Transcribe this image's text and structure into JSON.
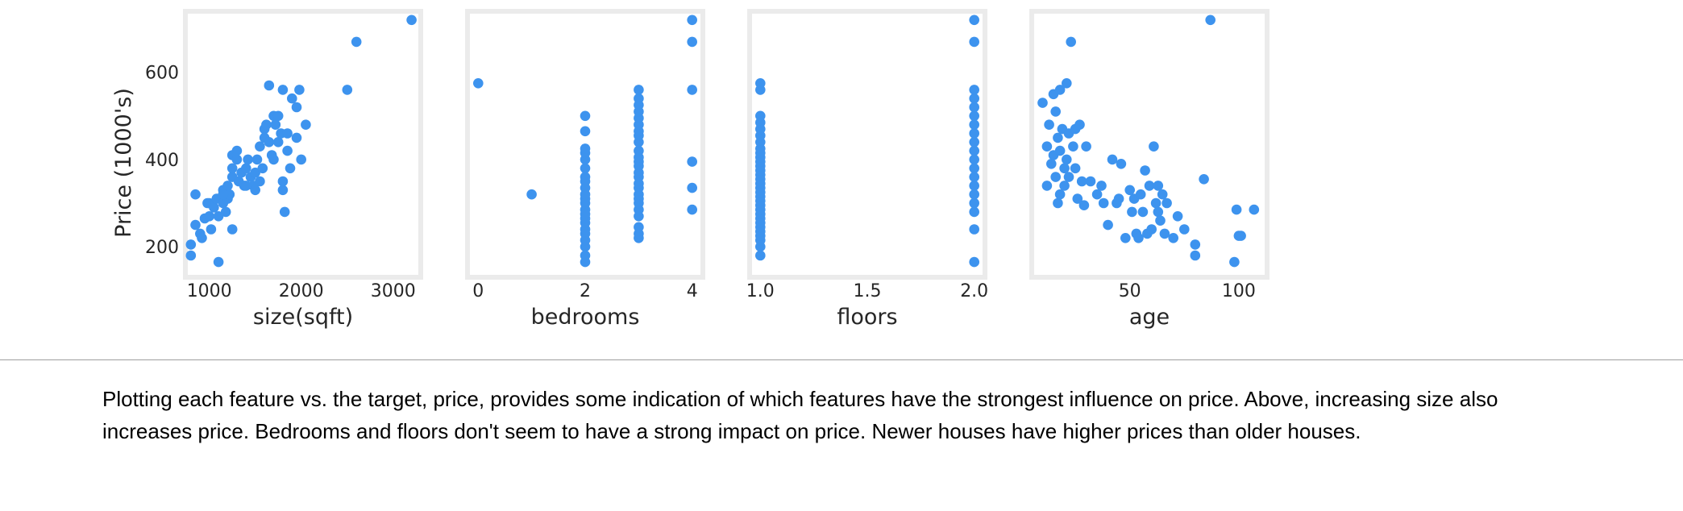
{
  "figure": {
    "ylabel": "Price (1000's)",
    "marker_color": "#3d93ee",
    "frame_color": "#ebebeb"
  },
  "chart_data": [
    {
      "type": "scatter",
      "xlabel": "size(sqft)",
      "ylabel": "Price (1000's)",
      "xlim": [
        740,
        3300
      ],
      "ylim": [
        130,
        740
      ],
      "xticks": [
        1000,
        2000,
        3000
      ],
      "yticks": [
        200,
        400,
        600
      ],
      "grid": false,
      "points": [
        [
          800,
          205
        ],
        [
          800,
          180
        ],
        [
          850,
          250
        ],
        [
          850,
          320
        ],
        [
          900,
          230
        ],
        [
          920,
          220
        ],
        [
          950,
          265
        ],
        [
          980,
          300
        ],
        [
          1000,
          270
        ],
        [
          1000,
          300
        ],
        [
          1020,
          240
        ],
        [
          1050,
          290
        ],
        [
          1080,
          310
        ],
        [
          1100,
          270
        ],
        [
          1100,
          165
        ],
        [
          1150,
          300
        ],
        [
          1150,
          330
        ],
        [
          1180,
          280
        ],
        [
          1200,
          310
        ],
        [
          1200,
          340
        ],
        [
          1220,
          320
        ],
        [
          1250,
          240
        ],
        [
          1250,
          360
        ],
        [
          1250,
          380
        ],
        [
          1250,
          410
        ],
        [
          1300,
          400
        ],
        [
          1300,
          420
        ],
        [
          1320,
          350
        ],
        [
          1350,
          370
        ],
        [
          1380,
          340
        ],
        [
          1400,
          380
        ],
        [
          1420,
          400
        ],
        [
          1450,
          360
        ],
        [
          1480,
          340
        ],
        [
          1500,
          330
        ],
        [
          1500,
          370
        ],
        [
          1520,
          400
        ],
        [
          1550,
          430
        ],
        [
          1550,
          350
        ],
        [
          1580,
          380
        ],
        [
          1600,
          470
        ],
        [
          1600,
          450
        ],
        [
          1620,
          480
        ],
        [
          1650,
          440
        ],
        [
          1680,
          410
        ],
        [
          1700,
          400
        ],
        [
          1700,
          500
        ],
        [
          1720,
          480
        ],
        [
          1750,
          440
        ],
        [
          1780,
          460
        ],
        [
          1800,
          350
        ],
        [
          1800,
          330
        ],
        [
          1820,
          280
        ],
        [
          1850,
          420
        ],
        [
          1850,
          460
        ],
        [
          1880,
          380
        ],
        [
          1900,
          540
        ],
        [
          1950,
          520
        ],
        [
          1950,
          450
        ],
        [
          1980,
          560
        ],
        [
          2000,
          400
        ],
        [
          2050,
          480
        ],
        [
          1650,
          570
        ],
        [
          1800,
          560
        ],
        [
          2500,
          560
        ],
        [
          2600,
          670
        ],
        [
          3200,
          720
        ],
        [
          1750,
          500
        ],
        [
          1400,
          340
        ],
        [
          1150,
          320
        ]
      ]
    },
    {
      "type": "scatter",
      "xlabel": "bedrooms",
      "xlim": [
        -0.2,
        4.2
      ],
      "ylim": [
        130,
        740
      ],
      "xticks": [
        0,
        2,
        4
      ],
      "grid": false,
      "points": [
        [
          0,
          575
        ],
        [
          1,
          320
        ],
        [
          2,
          165
        ],
        [
          2,
          180
        ],
        [
          2,
          200
        ],
        [
          2,
          215
        ],
        [
          2,
          230
        ],
        [
          2,
          240
        ],
        [
          2,
          255
        ],
        [
          2,
          265
        ],
        [
          2,
          275
        ],
        [
          2,
          285
        ],
        [
          2,
          300
        ],
        [
          2,
          310
        ],
        [
          2,
          320
        ],
        [
          2,
          335
        ],
        [
          2,
          350
        ],
        [
          2,
          360
        ],
        [
          2,
          380
        ],
        [
          2,
          400
        ],
        [
          2,
          415
        ],
        [
          2,
          425
        ],
        [
          2,
          465
        ],
        [
          2,
          500
        ],
        [
          3,
          220
        ],
        [
          3,
          230
        ],
        [
          3,
          245
        ],
        [
          3,
          270
        ],
        [
          3,
          285
        ],
        [
          3,
          300
        ],
        [
          3,
          310
        ],
        [
          3,
          320
        ],
        [
          3,
          335
        ],
        [
          3,
          345
        ],
        [
          3,
          360
        ],
        [
          3,
          370
        ],
        [
          3,
          385
        ],
        [
          3,
          395
        ],
        [
          3,
          405
        ],
        [
          3,
          420
        ],
        [
          3,
          440
        ],
        [
          3,
          455
        ],
        [
          3,
          465
        ],
        [
          3,
          480
        ],
        [
          3,
          495
        ],
        [
          3,
          510
        ],
        [
          3,
          525
        ],
        [
          3,
          540
        ],
        [
          3,
          560
        ],
        [
          4,
          285
        ],
        [
          4,
          335
        ],
        [
          4,
          395
        ],
        [
          4,
          560
        ],
        [
          4,
          670
        ],
        [
          4,
          720
        ]
      ]
    },
    {
      "type": "scatter",
      "xlabel": "floors",
      "xlim": [
        0.95,
        2.05
      ],
      "ylim": [
        130,
        740
      ],
      "xticks": [
        1.0,
        1.5,
        2.0
      ],
      "grid": false,
      "points": [
        [
          1,
          180
        ],
        [
          1,
          200
        ],
        [
          1,
          215
        ],
        [
          1,
          225
        ],
        [
          1,
          235
        ],
        [
          1,
          245
        ],
        [
          1,
          255
        ],
        [
          1,
          265
        ],
        [
          1,
          275
        ],
        [
          1,
          285
        ],
        [
          1,
          295
        ],
        [
          1,
          305
        ],
        [
          1,
          315
        ],
        [
          1,
          325
        ],
        [
          1,
          335
        ],
        [
          1,
          345
        ],
        [
          1,
          355
        ],
        [
          1,
          365
        ],
        [
          1,
          375
        ],
        [
          1,
          385
        ],
        [
          1,
          395
        ],
        [
          1,
          405
        ],
        [
          1,
          415
        ],
        [
          1,
          425
        ],
        [
          1,
          440
        ],
        [
          1,
          455
        ],
        [
          1,
          470
        ],
        [
          1,
          485
        ],
        [
          1,
          500
        ],
        [
          1,
          560
        ],
        [
          1,
          575
        ],
        [
          2,
          165
        ],
        [
          2,
          240
        ],
        [
          2,
          280
        ],
        [
          2,
          300
        ],
        [
          2,
          320
        ],
        [
          2,
          340
        ],
        [
          2,
          360
        ],
        [
          2,
          380
        ],
        [
          2,
          400
        ],
        [
          2,
          420
        ],
        [
          2,
          440
        ],
        [
          2,
          460
        ],
        [
          2,
          480
        ],
        [
          2,
          500
        ],
        [
          2,
          520
        ],
        [
          2,
          540
        ],
        [
          2,
          560
        ],
        [
          2,
          670
        ],
        [
          2,
          720
        ]
      ]
    },
    {
      "type": "scatter",
      "xlabel": "age",
      "xlim": [
        5,
        113
      ],
      "ylim": [
        130,
        740
      ],
      "xticks": [
        50,
        100
      ],
      "grid": false,
      "points": [
        [
          10,
          530
        ],
        [
          12,
          340
        ],
        [
          12,
          430
        ],
        [
          13,
          480
        ],
        [
          14,
          390
        ],
        [
          15,
          550
        ],
        [
          15,
          410
        ],
        [
          16,
          510
        ],
        [
          16,
          360
        ],
        [
          17,
          450
        ],
        [
          17,
          300
        ],
        [
          18,
          560
        ],
        [
          18,
          420
        ],
        [
          18,
          320
        ],
        [
          19,
          470
        ],
        [
          20,
          380
        ],
        [
          20,
          340
        ],
        [
          21,
          575
        ],
        [
          21,
          400
        ],
        [
          22,
          460
        ],
        [
          22,
          360
        ],
        [
          23,
          670
        ],
        [
          24,
          430
        ],
        [
          25,
          470
        ],
        [
          25,
          380
        ],
        [
          26,
          310
        ],
        [
          27,
          480
        ],
        [
          28,
          350
        ],
        [
          29,
          295
        ],
        [
          30,
          430
        ],
        [
          32,
          350
        ],
        [
          35,
          320
        ],
        [
          37,
          340
        ],
        [
          38,
          300
        ],
        [
          40,
          250
        ],
        [
          42,
          400
        ],
        [
          44,
          300
        ],
        [
          45,
          310
        ],
        [
          46,
          390
        ],
        [
          48,
          220
        ],
        [
          50,
          330
        ],
        [
          51,
          280
        ],
        [
          52,
          310
        ],
        [
          53,
          230
        ],
        [
          54,
          220
        ],
        [
          55,
          320
        ],
        [
          56,
          280
        ],
        [
          57,
          375
        ],
        [
          58,
          230
        ],
        [
          59,
          340
        ],
        [
          60,
          240
        ],
        [
          61,
          430
        ],
        [
          62,
          300
        ],
        [
          63,
          280
        ],
        [
          63,
          340
        ],
        [
          64,
          260
        ],
        [
          65,
          320
        ],
        [
          66,
          230
        ],
        [
          67,
          300
        ],
        [
          70,
          220
        ],
        [
          72,
          270
        ],
        [
          75,
          240
        ],
        [
          80,
          205
        ],
        [
          80,
          180
        ],
        [
          84,
          355
        ],
        [
          87,
          720
        ],
        [
          98,
          165
        ],
        [
          99,
          285
        ],
        [
          100,
          225
        ],
        [
          101,
          225
        ],
        [
          107,
          285
        ]
      ]
    }
  ],
  "caption": {
    "line1": "Plotting each feature vs. the target, price, provides some indication of which features have the strongest influence on price. Above, increasing size also",
    "line2": "increases price. Bedrooms and floors don't seem to have a strong impact on price. Newer houses have higher prices than older houses."
  }
}
